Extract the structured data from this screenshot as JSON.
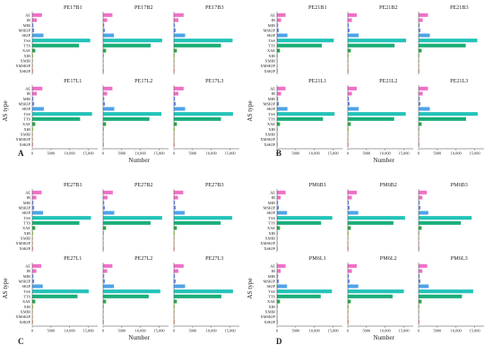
{
  "categories": [
    "AE",
    "IR",
    "MIR",
    "MSKIP",
    "SKIP",
    "TSS",
    "TTS",
    "XAE",
    "XIR",
    "XMIR",
    "XMSKIP",
    "XSKIP"
  ],
  "colors": [
    "#f06fc8",
    "#f06fc8",
    "#6a8cf0",
    "#6a8cf0",
    "#4fa3e8",
    "#22c3b8",
    "#1aae7a",
    "#28a844",
    "#8cc83a",
    "#c0b060",
    "#e0a070",
    "#f0907a"
  ],
  "x_ticks": [
    0,
    5000,
    10000,
    15000
  ],
  "x_tick_labels": [
    "0",
    "5000",
    "10,000",
    "15,000"
  ],
  "xlim": [
    0,
    17500
  ],
  "axis_label_x": "Number",
  "axis_label_y": "AS type",
  "chart_data": [
    {
      "type": "bar",
      "orientation": "horizontal",
      "panel": "A",
      "subplots": [
        {
          "title": "PE17B1",
          "values": [
            2600,
            1200,
            300,
            500,
            3000,
            15500,
            12500,
            800,
            200,
            100,
            100,
            200
          ]
        },
        {
          "title": "PE17B2",
          "values": [
            2500,
            1100,
            300,
            500,
            2900,
            15800,
            12700,
            800,
            200,
            100,
            100,
            200
          ]
        },
        {
          "title": "PE17B3",
          "values": [
            2600,
            1200,
            300,
            500,
            3000,
            15700,
            12600,
            800,
            200,
            100,
            100,
            200
          ]
        },
        {
          "title": "PE17L1",
          "values": [
            2700,
            1200,
            300,
            500,
            3100,
            16000,
            12800,
            800,
            200,
            100,
            100,
            200
          ]
        },
        {
          "title": "PE17L2",
          "values": [
            2500,
            1100,
            300,
            500,
            3000,
            15600,
            12400,
            800,
            200,
            100,
            100,
            200
          ]
        },
        {
          "title": "PE17L3",
          "values": [
            2600,
            1200,
            300,
            500,
            3000,
            15800,
            12600,
            800,
            200,
            100,
            100,
            200
          ]
        }
      ]
    },
    {
      "type": "bar",
      "orientation": "horizontal",
      "panel": "B",
      "subplots": [
        {
          "title": "PE21B1",
          "values": [
            2300,
            1100,
            300,
            500,
            2800,
            15200,
            12000,
            800,
            200,
            100,
            100,
            200
          ]
        },
        {
          "title": "PE21B2",
          "values": [
            2400,
            1100,
            300,
            500,
            2900,
            15600,
            12500,
            800,
            200,
            100,
            100,
            200
          ]
        },
        {
          "title": "PE21B3",
          "values": [
            2500,
            1100,
            300,
            500,
            3000,
            15700,
            12600,
            800,
            200,
            100,
            100,
            200
          ]
        },
        {
          "title": "PE21L1",
          "values": [
            2300,
            1100,
            300,
            500,
            2800,
            15400,
            12300,
            800,
            200,
            100,
            100,
            200
          ]
        },
        {
          "title": "PE21L2",
          "values": [
            2400,
            1100,
            300,
            500,
            2900,
            15500,
            12400,
            800,
            200,
            100,
            100,
            200
          ]
        },
        {
          "title": "PE21L3",
          "values": [
            2500,
            1100,
            300,
            500,
            3000,
            15800,
            12700,
            800,
            200,
            100,
            100,
            200
          ]
        }
      ]
    },
    {
      "type": "bar",
      "orientation": "horizontal",
      "panel": "C",
      "subplots": [
        {
          "title": "PE27B1",
          "values": [
            2500,
            1100,
            300,
            500,
            2900,
            15700,
            12600,
            800,
            200,
            100,
            100,
            200
          ]
        },
        {
          "title": "PE27B2",
          "values": [
            2600,
            1200,
            300,
            500,
            3000,
            15800,
            12700,
            800,
            200,
            100,
            100,
            200
          ]
        },
        {
          "title": "PE27B3",
          "values": [
            2500,
            1100,
            300,
            500,
            2900,
            15600,
            12500,
            800,
            200,
            100,
            100,
            200
          ]
        },
        {
          "title": "PE27L1",
          "values": [
            2400,
            1100,
            300,
            500,
            2800,
            15100,
            12100,
            800,
            200,
            100,
            100,
            200
          ]
        },
        {
          "title": "PE27L2",
          "values": [
            2500,
            1100,
            300,
            500,
            2900,
            15300,
            12200,
            800,
            200,
            100,
            100,
            200
          ]
        },
        {
          "title": "PE27L3",
          "values": [
            2600,
            1200,
            300,
            500,
            3000,
            15800,
            12700,
            800,
            200,
            100,
            100,
            200
          ]
        }
      ]
    },
    {
      "type": "bar",
      "orientation": "horizontal",
      "panel": "D",
      "subplots": [
        {
          "title": "PM6B1",
          "values": [
            2300,
            1000,
            300,
            500,
            2700,
            14800,
            11800,
            800,
            200,
            100,
            100,
            200
          ]
        },
        {
          "title": "PM6B2",
          "values": [
            2400,
            1100,
            300,
            500,
            2800,
            15300,
            12200,
            800,
            200,
            100,
            100,
            200
          ]
        },
        {
          "title": "PM6B3",
          "values": [
            2200,
            1000,
            300,
            500,
            2600,
            14200,
            11300,
            800,
            200,
            100,
            100,
            200
          ]
        },
        {
          "title": "PM6L1",
          "values": [
            2300,
            1000,
            300,
            500,
            2700,
            14700,
            11700,
            800,
            200,
            100,
            100,
            200
          ]
        },
        {
          "title": "PM6L2",
          "values": [
            2400,
            1100,
            300,
            500,
            2800,
            15000,
            12000,
            800,
            200,
            100,
            100,
            200
          ]
        },
        {
          "title": "PM6L3",
          "values": [
            2300,
            1000,
            300,
            500,
            2700,
            14600,
            11600,
            800,
            200,
            100,
            100,
            200
          ]
        }
      ]
    }
  ]
}
